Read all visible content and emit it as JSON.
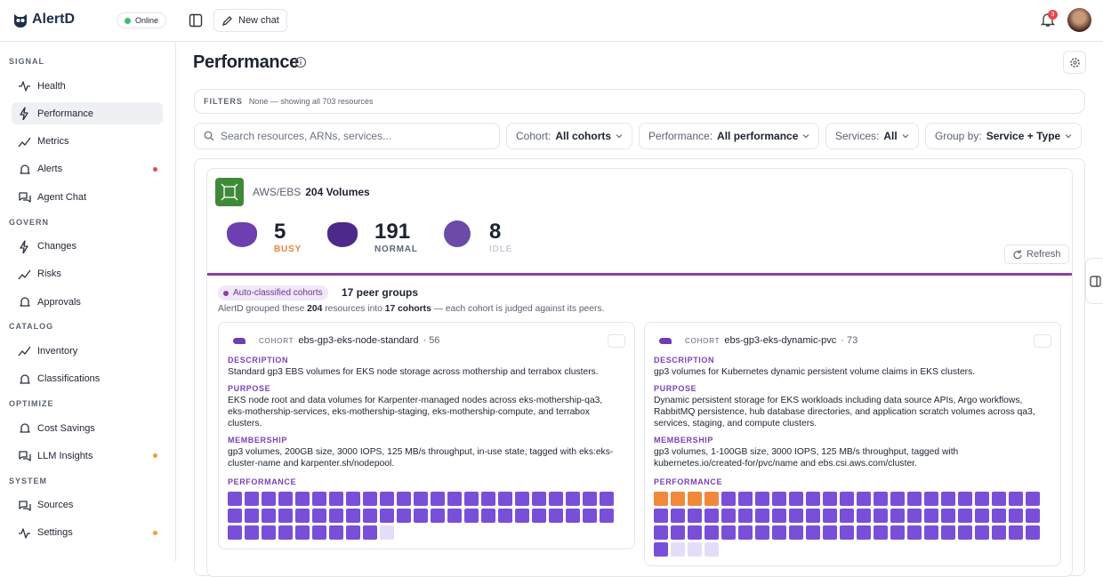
{
  "app": {
    "name": "AlertD",
    "status": "Online"
  },
  "topbar": {
    "new_chat": "New chat",
    "notifications": "3"
  },
  "sidebar": {
    "sections": [
      {
        "title": "SIGNAL",
        "items": [
          {
            "label": "Health"
          },
          {
            "label": "Performance",
            "active": true
          },
          {
            "label": "Metrics"
          },
          {
            "label": "Alerts",
            "dot": "#e5484d"
          },
          {
            "label": "Agent Chat"
          }
        ]
      },
      {
        "title": "GOVERN",
        "items": [
          {
            "label": "Changes"
          },
          {
            "label": "Risks"
          },
          {
            "label": "Approvals"
          }
        ]
      },
      {
        "title": "CATALOG",
        "items": [
          {
            "label": "Inventory"
          },
          {
            "label": "Classifications"
          }
        ]
      },
      {
        "title": "OPTIMIZE",
        "items": [
          {
            "label": "Cost Savings"
          },
          {
            "label": "LLM Insights",
            "dot": "#f0a030"
          }
        ]
      },
      {
        "title": "SYSTEM",
        "items": [
          {
            "label": "Sources"
          },
          {
            "label": "Settings",
            "dot": "#f0a030"
          }
        ]
      }
    ]
  },
  "page": {
    "title": "Performance",
    "filters": {
      "label": "FILTERS",
      "text": "None — showing all 703 resources"
    },
    "search_placeholder": "Search resources, ARNs, services...",
    "dropdowns": [
      {
        "label": "Cohort:",
        "value": "All cohorts"
      },
      {
        "label": "Performance:",
        "value": "All performance"
      },
      {
        "label": "Services:",
        "value": "All"
      },
      {
        "label": "Group by:",
        "value": "Service + Type"
      }
    ]
  },
  "group": {
    "provider": "AWS/EBS",
    "name": "204 Volumes",
    "stats": [
      {
        "value": 5,
        "label": "BUSY",
        "color": "#e8833a"
      },
      {
        "value": 191,
        "label": "NORMAL",
        "color": "#5b6676"
      },
      {
        "value": 8,
        "label": "IDLE",
        "color": "#c9ced6"
      }
    ],
    "refresh": "Refresh",
    "chip": "Auto-classified cohorts",
    "peer_groups": "17 peer groups",
    "summary": [
      "AlertD grouped these ",
      "204",
      " resources into ",
      "17 cohorts",
      " — each cohort is judged against its peers."
    ],
    "cohorts": [
      {
        "tag": "COHORT",
        "name": "ebs-gp3-eks-node-standard",
        "count": "· 56",
        "sections": [
          {
            "label": "DESCRIPTION",
            "text": "Standard gp3 EBS volumes for EKS node storage across mothership and terrabox clusters."
          },
          {
            "label": "PURPOSE",
            "text": "EKS node root and data volumes for Karpenter-managed nodes across eks-mothership-qa3, eks-mothership-services, eks-mothership-staging, eks-mothership-compute, and terrabox clusters."
          },
          {
            "label": "MEMBERSHIP",
            "text": "gp3 volumes, 200GB size, 3000 IOPS, 125 MB/s throughput, in-use state, tagged with eks:eks-cluster-name and karpenter.sh/nodepool."
          }
        ],
        "performance_label": "PERFORMANCE",
        "cells": {
          "busy": 0,
          "normal": 55,
          "idle": 1
        }
      },
      {
        "tag": "COHORT",
        "name": "ebs-gp3-eks-dynamic-pvc",
        "count": "· 73",
        "sections": [
          {
            "label": "DESCRIPTION",
            "text": "gp3 volumes for Kubernetes dynamic persistent volume claims in EKS clusters."
          },
          {
            "label": "PURPOSE",
            "text": "Dynamic persistent storage for EKS workloads including data source APIs, Argo workflows, RabbitMQ persistence, hub database directories, and application scratch volumes across qa3, services, staging, and compute clusters."
          },
          {
            "label": "MEMBERSHIP",
            "text": "gp3 volumes, 1-100GB size, 3000 IOPS, 125 MB/s throughput, tagged with kubernetes.io/created-for/pvc/name and ebs.csi.aws.com/cluster."
          }
        ],
        "performance_label": "PERFORMANCE",
        "cells": {
          "busy": 4,
          "normal": 66,
          "idle": 3
        }
      }
    ]
  }
}
